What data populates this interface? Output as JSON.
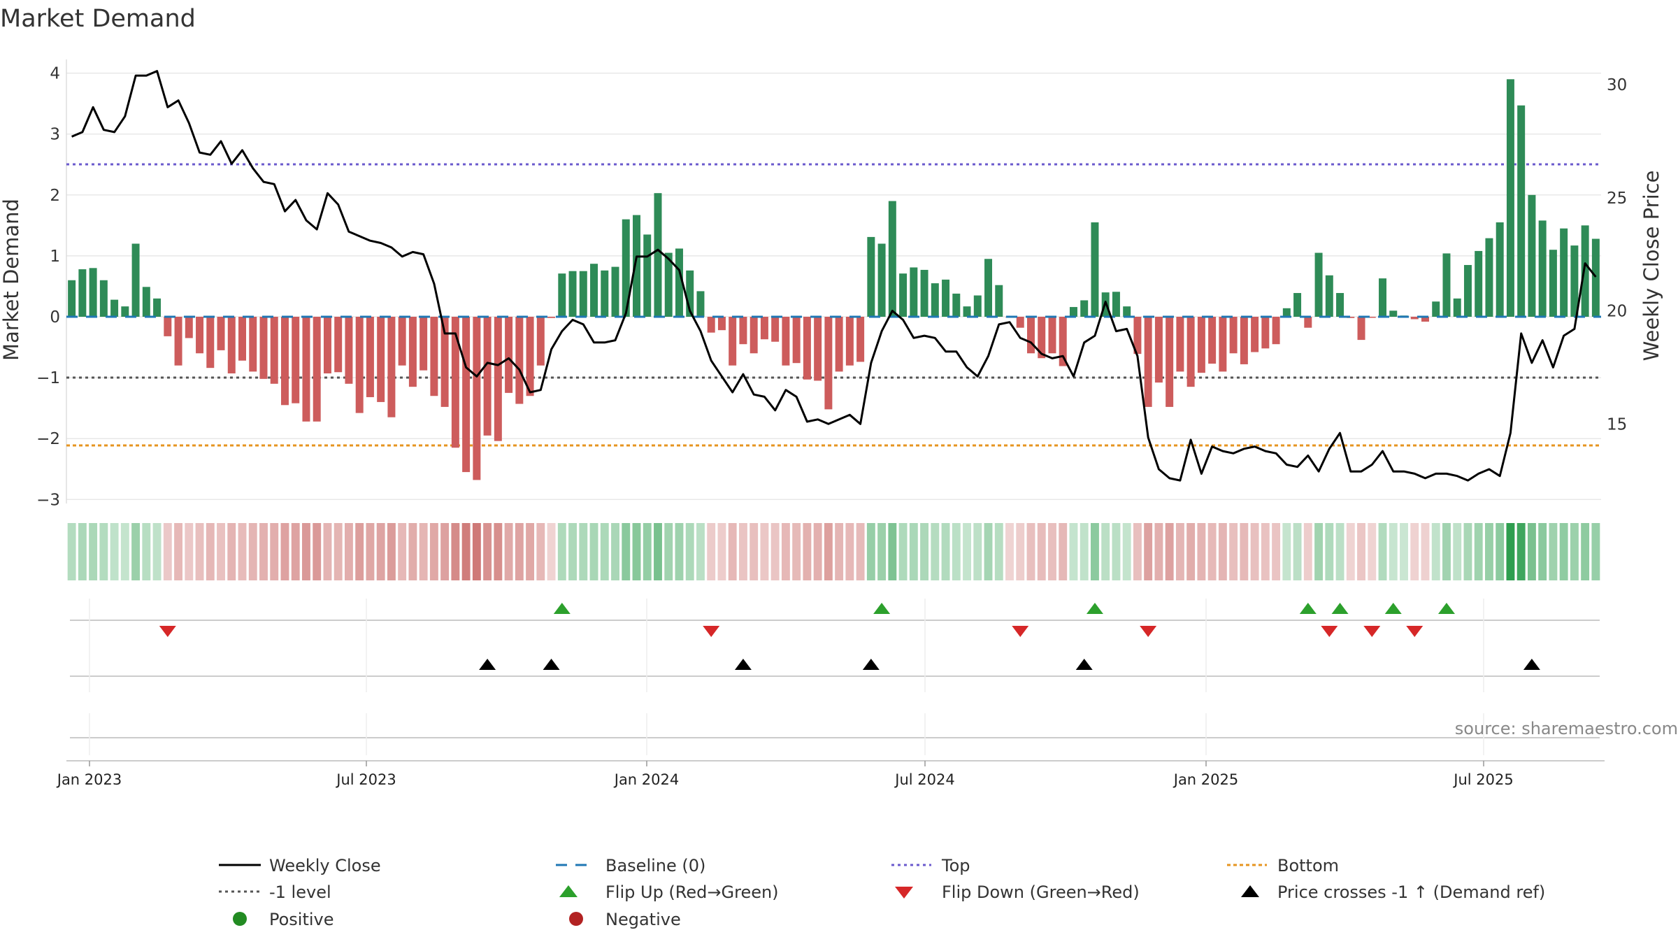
{
  "chart_data": {
    "type": "bar",
    "title": "Market Demand",
    "ylabel_left": "Market Demand",
    "ylabel_right": "Weekly Close Price",
    "ylim_left": [
      -3.4,
      4.3
    ],
    "ylim_right": [
      10.8,
      31.5
    ],
    "yticks_left": [
      -3,
      -2,
      -1,
      0,
      1,
      2,
      3,
      4
    ],
    "yticks_right": [
      15,
      20,
      25,
      30
    ],
    "x_dates": [
      "Jan 2023",
      "Jul 2023",
      "Jan 2024",
      "Jul 2024",
      "Jan 2025",
      "Jul 2025"
    ],
    "levels": {
      "top": 2.5,
      "bottom": -2.12,
      "minus_one": -1,
      "baseline": 0
    },
    "colors": {
      "positive": "#2e8b57",
      "negative": "#cd5c5c",
      "price": "#000000",
      "top": "#6a5acd",
      "bottom": "#e69520",
      "level": "#555555",
      "baseline": "#1f77b4",
      "flip_up": "#2ca02c",
      "flip_down": "#d62728",
      "cross": "#000000"
    },
    "demand": [
      0.6,
      0.78,
      0.8,
      0.6,
      0.28,
      0.17,
      1.2,
      0.49,
      0.3,
      -0.32,
      -0.8,
      -0.35,
      -0.6,
      -0.84,
      -0.55,
      -0.93,
      -0.72,
      -0.9,
      -1.02,
      -1.1,
      -1.45,
      -1.42,
      -1.72,
      -1.72,
      -0.93,
      -0.91,
      -1.1,
      -1.58,
      -1.32,
      -1.4,
      -1.65,
      -0.8,
      -1.15,
      -0.88,
      -1.3,
      -1.48,
      -2.15,
      -2.55,
      -2.68,
      -1.95,
      -2.04,
      -1.25,
      -1.43,
      -1.3,
      -0.8,
      -0.02,
      0.71,
      0.75,
      0.75,
      0.87,
      0.76,
      0.82,
      1.6,
      1.67,
      1.35,
      2.03,
      1.05,
      1.12,
      0.76,
      0.42,
      -0.26,
      -0.22,
      -0.8,
      -0.45,
      -0.6,
      -0.37,
      -0.41,
      -0.8,
      -0.76,
      -1.03,
      -1.05,
      -1.52,
      -0.9,
      -0.8,
      -0.74,
      1.31,
      1.2,
      1.9,
      0.71,
      0.81,
      0.77,
      0.55,
      0.61,
      0.38,
      0.17,
      0.35,
      0.95,
      0.52,
      -0.01,
      -0.18,
      -0.6,
      -0.68,
      -0.6,
      -0.81,
      0.16,
      0.27,
      1.55,
      0.4,
      0.41,
      0.17,
      -0.61,
      -1.48,
      -1.08,
      -1.48,
      -0.9,
      -1.15,
      -0.92,
      -0.77,
      -0.9,
      -0.6,
      -0.78,
      -0.58,
      -0.52,
      -0.45,
      0.14,
      0.39,
      -0.18,
      1.05,
      0.68,
      0.39,
      -0.02,
      -0.38,
      -0.01,
      0.63,
      0.1,
      0.02,
      -0.04,
      -0.08,
      0.25,
      1.04,
      0.3,
      0.85,
      1.08,
      1.29,
      1.55,
      3.9,
      3.47,
      2.0,
      1.58,
      1.1,
      1.45,
      1.17,
      1.5,
      1.28
    ],
    "price": [
      27.7,
      27.9,
      29.0,
      28.0,
      27.9,
      28.6,
      30.4,
      30.4,
      30.6,
      29.0,
      29.3,
      28.3,
      27.0,
      26.9,
      27.5,
      26.5,
      27.1,
      26.3,
      25.7,
      25.6,
      24.4,
      24.9,
      24.0,
      23.6,
      25.2,
      24.7,
      23.5,
      23.3,
      23.1,
      23.0,
      22.8,
      22.4,
      22.6,
      22.5,
      21.2,
      19.0,
      19.0,
      17.5,
      17.1,
      17.7,
      17.6,
      17.9,
      17.4,
      16.4,
      16.5,
      18.3,
      19.1,
      19.6,
      19.4,
      18.6,
      18.6,
      18.7,
      19.9,
      22.4,
      22.4,
      22.7,
      22.3,
      21.8,
      20.0,
      19.1,
      17.8,
      17.1,
      16.4,
      17.2,
      16.3,
      16.2,
      15.6,
      16.5,
      16.2,
      15.1,
      15.2,
      15.0,
      15.2,
      15.4,
      15.0,
      17.7,
      19.1,
      20.0,
      19.6,
      18.8,
      18.9,
      18.8,
      18.2,
      18.2,
      17.5,
      17.1,
      18.0,
      19.4,
      19.5,
      18.8,
      18.6,
      18.1,
      17.9,
      18.0,
      17.1,
      18.6,
      18.9,
      20.4,
      19.1,
      19.2,
      18.0,
      14.4,
      13.0,
      12.6,
      12.5,
      14.3,
      12.8,
      14.0,
      13.8,
      13.7,
      13.9,
      14.0,
      13.8,
      13.7,
      13.2,
      13.1,
      13.6,
      12.9,
      13.9,
      14.6,
      12.9,
      12.9,
      13.2,
      13.8,
      12.9,
      12.9,
      12.8,
      12.6,
      12.8,
      12.8,
      12.7,
      12.5,
      12.8,
      13.0,
      12.7,
      14.6,
      19.0,
      17.7,
      18.7,
      17.5,
      18.9,
      19.2,
      22.1,
      21.5
    ],
    "flip_up_weeks": [
      46,
      76,
      96,
      116,
      119,
      124,
      129
    ],
    "flip_down_weeks": [
      9,
      60,
      89,
      101,
      118,
      122,
      126
    ],
    "cross_weeks": [
      39,
      45,
      63,
      75,
      95,
      137
    ],
    "strip_note": "shaded strip encodes demand sign (green/red) and magnitude (saturation)",
    "legend": [
      "Weekly Close",
      "Baseline (0)",
      "Top",
      "Bottom",
      "-1 level",
      "Flip Up (Red→Green)",
      "Flip Down (Green→Red)",
      "Price crosses -1 ↑ (Demand ref)",
      "Positive",
      "Negative"
    ]
  },
  "source": "source: sharemaestro.com"
}
